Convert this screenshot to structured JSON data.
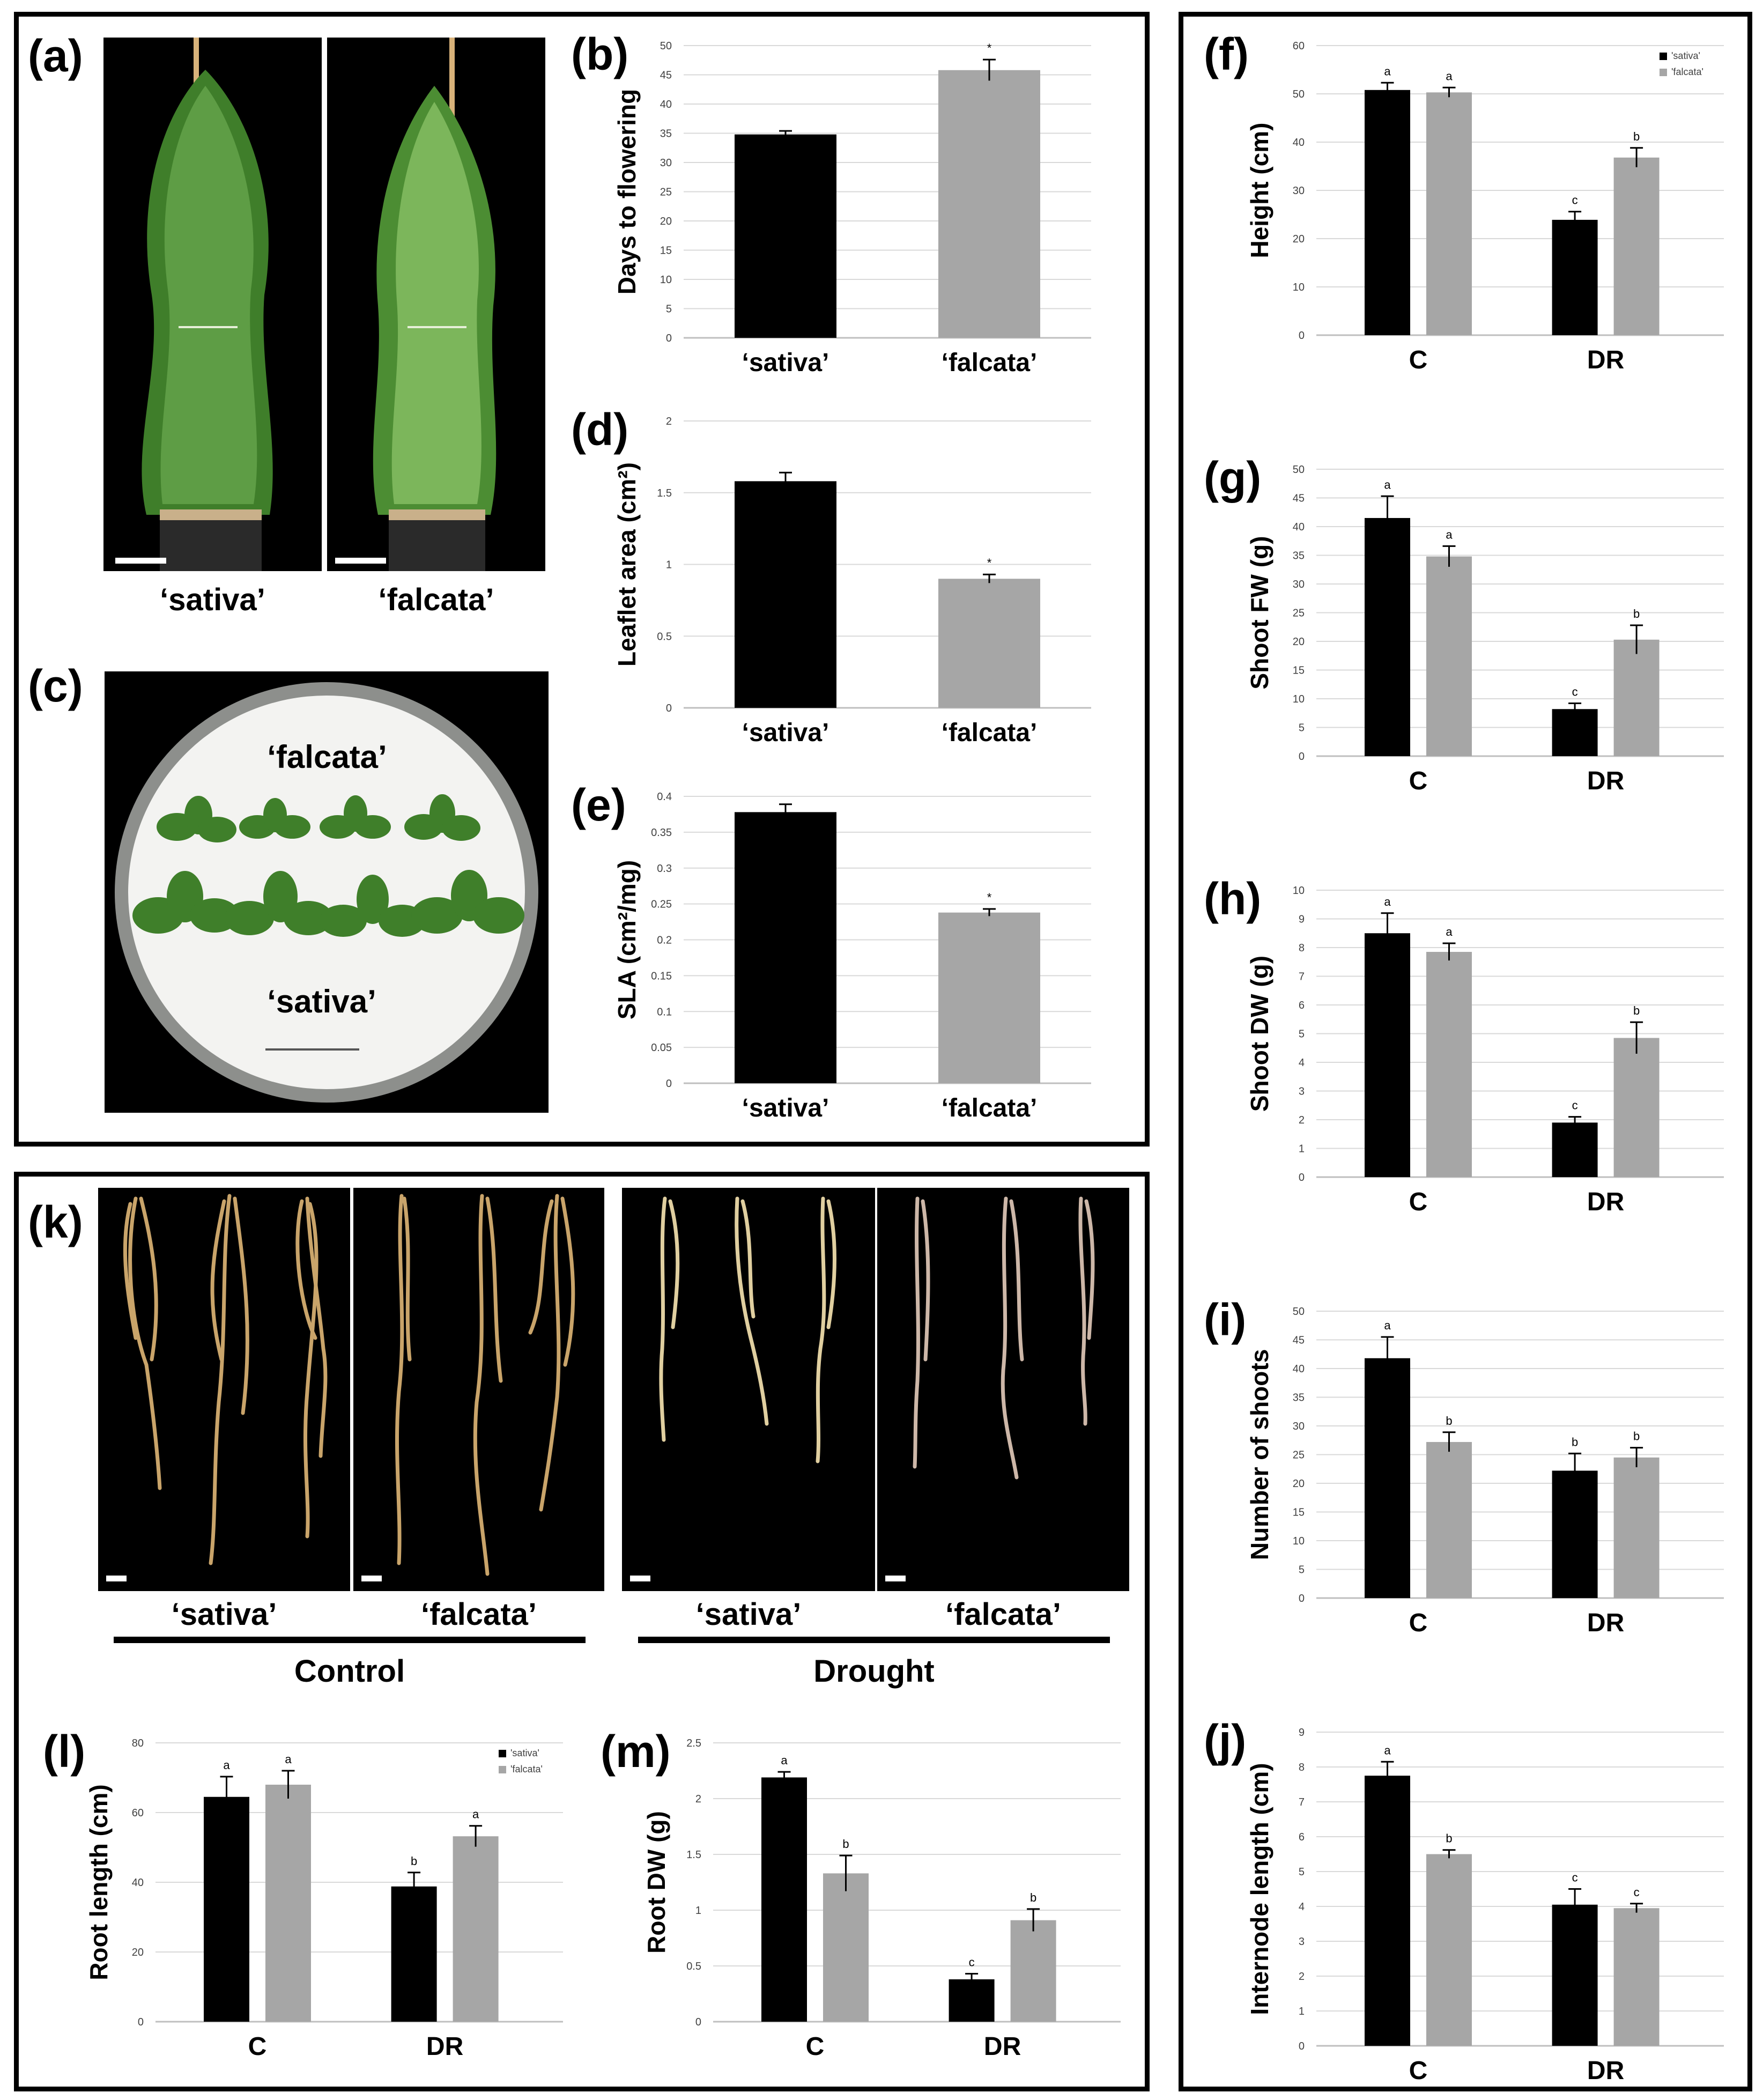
{
  "panels": {
    "a": {
      "label": "(a)",
      "genotypes": [
        "‘sativa’",
        "‘falcata’"
      ]
    },
    "c": {
      "label": "(c)",
      "plate_labels": [
        "‘falcata’",
        "‘sativa’"
      ]
    },
    "k": {
      "label": "(k)",
      "genotypes": [
        "‘sativa’",
        "‘falcata’",
        "‘sativa’",
        "‘falcata’"
      ],
      "groups": [
        "Control",
        "Drought"
      ]
    }
  },
  "colors": {
    "sativa": "#000000",
    "falcata": "#a6a6a6",
    "gridline": "#d9d9d9",
    "axis": "#bfbfbf"
  },
  "chart_data": [
    {
      "id": "b",
      "panel_label": "(b)",
      "type": "bar",
      "ylabel": "Days to flowering",
      "categories": [
        "‘sativa’",
        "‘falcata’"
      ],
      "values": [
        34.8,
        45.8
      ],
      "errors": [
        0.6,
        1.8
      ],
      "annotations": [
        "",
        "*"
      ],
      "ylim": [
        0,
        50
      ],
      "ticks": [
        0,
        5,
        10,
        15,
        20,
        25,
        30,
        35,
        40,
        45,
        50
      ],
      "grid": true
    },
    {
      "id": "d",
      "panel_label": "(d)",
      "type": "bar",
      "ylabel": "Leaflet area (cm²)",
      "categories": [
        "‘sativa’",
        "‘falcata’"
      ],
      "values": [
        1.58,
        0.9
      ],
      "errors": [
        0.06,
        0.03
      ],
      "annotations": [
        "",
        "*"
      ],
      "ylim": [
        0,
        2
      ],
      "ticks": [
        0,
        0.5,
        1,
        1.5,
        2
      ],
      "grid": true
    },
    {
      "id": "e",
      "panel_label": "(e)",
      "type": "bar",
      "ylabel": "SLA (cm²/mg)",
      "categories": [
        "‘sativa’",
        "‘falcata’"
      ],
      "values": [
        0.378,
        0.238
      ],
      "errors": [
        0.011,
        0.005
      ],
      "annotations": [
        "",
        "*"
      ],
      "ylim": [
        0,
        0.4
      ],
      "ticks": [
        0,
        0.05,
        0.1,
        0.15,
        0.2,
        0.25,
        0.3,
        0.35,
        0.4
      ],
      "grid": true
    },
    {
      "id": "f",
      "panel_label": "(f)",
      "type": "bar",
      "ylabel": "Height (cm)",
      "categories": [
        "C",
        "DR"
      ],
      "legend": [
        "'sativa'",
        "'falcata'"
      ],
      "legend_position": "top-right",
      "series": [
        {
          "name": "'sativa'",
          "values": [
            50.8,
            23.9
          ],
          "errors": [
            1.5,
            1.7
          ],
          "letters": [
            "a",
            "c"
          ]
        },
        {
          "name": "'falcata'",
          "values": [
            50.3,
            36.8
          ],
          "errors": [
            1.0,
            2.0
          ],
          "letters": [
            "a",
            "b"
          ]
        }
      ],
      "ylim": [
        0,
        60
      ],
      "ticks": [
        0,
        10,
        20,
        30,
        40,
        50,
        60
      ],
      "grid": true
    },
    {
      "id": "g",
      "panel_label": "(g)",
      "type": "bar",
      "ylabel": "Shoot FW (g)",
      "categories": [
        "C",
        "DR"
      ],
      "series": [
        {
          "name": "'sativa'",
          "values": [
            41.5,
            8.2
          ],
          "errors": [
            3.8,
            1.0
          ],
          "letters": [
            "a",
            "c"
          ]
        },
        {
          "name": "'falcata'",
          "values": [
            34.8,
            20.3
          ],
          "errors": [
            1.8,
            2.5
          ],
          "letters": [
            "a",
            "b"
          ]
        }
      ],
      "ylim": [
        0,
        50
      ],
      "ticks": [
        0,
        5,
        10,
        15,
        20,
        25,
        30,
        35,
        40,
        45,
        50
      ],
      "grid": true
    },
    {
      "id": "h",
      "panel_label": "(h)",
      "type": "bar",
      "ylabel": "Shoot DW (g)",
      "categories": [
        "C",
        "DR"
      ],
      "series": [
        {
          "name": "'sativa'",
          "values": [
            8.5,
            1.9
          ],
          "errors": [
            0.7,
            0.2
          ],
          "letters": [
            "a",
            "c"
          ]
        },
        {
          "name": "'falcata'",
          "values": [
            7.85,
            4.85
          ],
          "errors": [
            0.3,
            0.55
          ],
          "letters": [
            "a",
            "b"
          ]
        }
      ],
      "ylim": [
        0,
        10
      ],
      "ticks": [
        0,
        1,
        2,
        3,
        4,
        5,
        6,
        7,
        8,
        9,
        10
      ],
      "grid": true
    },
    {
      "id": "i",
      "panel_label": "(i)",
      "type": "bar",
      "ylabel": "Number of shoots",
      "categories": [
        "C",
        "DR"
      ],
      "series": [
        {
          "name": "'sativa'",
          "values": [
            41.8,
            22.2
          ],
          "errors": [
            3.7,
            3.0
          ],
          "letters": [
            "a",
            "b"
          ]
        },
        {
          "name": "'falcata'",
          "values": [
            27.2,
            24.5
          ],
          "errors": [
            1.7,
            1.7
          ],
          "letters": [
            "b",
            "b"
          ]
        }
      ],
      "ylim": [
        0,
        50
      ],
      "ticks": [
        0,
        5,
        10,
        15,
        20,
        25,
        30,
        35,
        40,
        45,
        50
      ],
      "grid": true
    },
    {
      "id": "j",
      "panel_label": "(j)",
      "type": "bar",
      "ylabel": "Internode length (cm)",
      "categories": [
        "C",
        "DR"
      ],
      "series": [
        {
          "name": "'sativa'",
          "values": [
            7.75,
            4.05
          ],
          "errors": [
            0.4,
            0.45
          ],
          "letters": [
            "a",
            "c"
          ]
        },
        {
          "name": "'falcata'",
          "values": [
            5.5,
            3.95
          ],
          "errors": [
            0.12,
            0.13
          ],
          "letters": [
            "b",
            "c"
          ]
        }
      ],
      "ylim": [
        0,
        9
      ],
      "ticks": [
        0,
        1,
        2,
        3,
        4,
        5,
        6,
        7,
        8,
        9
      ],
      "grid": true
    },
    {
      "id": "l",
      "panel_label": "(l)",
      "type": "bar",
      "ylabel": "Root length (cm)",
      "categories": [
        "C",
        "DR"
      ],
      "legend": [
        "'sativa'",
        "'falcata'"
      ],
      "legend_position": "top-right",
      "series": [
        {
          "name": "'sativa'",
          "values": [
            64.5,
            38.8
          ],
          "errors": [
            5.8,
            4.0
          ],
          "letters": [
            "a",
            "b"
          ]
        },
        {
          "name": "'falcata'",
          "values": [
            68.0,
            53.2
          ],
          "errors": [
            4.0,
            3.0
          ],
          "letters": [
            "a",
            "a"
          ]
        }
      ],
      "ylim": [
        0,
        80
      ],
      "ticks": [
        0,
        20,
        40,
        60,
        80
      ],
      "grid": true
    },
    {
      "id": "m",
      "panel_label": "(m)",
      "type": "bar",
      "ylabel": "Root DW (g)",
      "categories": [
        "C",
        "DR"
      ],
      "series": [
        {
          "name": "'sativa'",
          "values": [
            2.19,
            0.38
          ],
          "errors": [
            0.05,
            0.05
          ],
          "letters": [
            "a",
            "c"
          ]
        },
        {
          "name": "'falcata'",
          "values": [
            1.33,
            0.91
          ],
          "errors": [
            0.16,
            0.1
          ],
          "letters": [
            "b",
            "b"
          ]
        }
      ],
      "ylim": [
        0,
        2.5
      ],
      "ticks": [
        0,
        0.5,
        1,
        1.5,
        2,
        2.5
      ],
      "grid": true
    }
  ]
}
